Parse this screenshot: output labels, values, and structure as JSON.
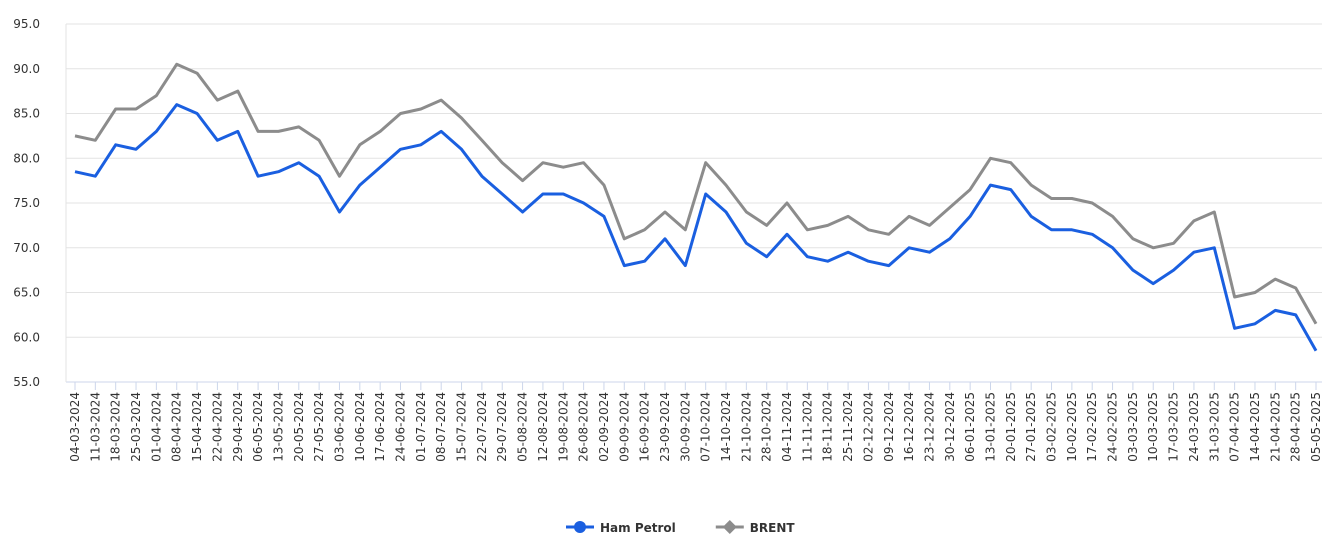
{
  "chart_data": {
    "type": "line",
    "categories": [
      "04-03-2024",
      "11-03-2024",
      "18-03-2024",
      "25-03-2024",
      "01-04-2024",
      "08-04-2024",
      "15-04-2024",
      "22-04-2024",
      "29-04-2024",
      "06-05-2024",
      "13-05-2024",
      "20-05-2024",
      "27-05-2024",
      "03-06-2024",
      "10-06-2024",
      "17-06-2024",
      "24-06-2024",
      "01-07-2024",
      "08-07-2024",
      "15-07-2024",
      "22-07-2024",
      "29-07-2024",
      "05-08-2024",
      "12-08-2024",
      "19-08-2024",
      "26-08-2024",
      "02-09-2024",
      "09-09-2024",
      "16-09-2024",
      "23-09-2024",
      "30-09-2024",
      "07-10-2024",
      "14-10-2024",
      "21-10-2024",
      "28-10-2024",
      "04-11-2024",
      "11-11-2024",
      "18-11-2024",
      "25-11-2024",
      "02-12-2024",
      "09-12-2024",
      "16-12-2024",
      "23-12-2024",
      "30-12-2024",
      "06-01-2025",
      "13-01-2025",
      "20-01-2025",
      "27-01-2025",
      "03-02-2025",
      "10-02-2025",
      "17-02-2025",
      "24-02-2025",
      "03-03-2025",
      "10-03-2025",
      "17-03-2025",
      "24-03-2025",
      "31-03-2025",
      "07-04-2025",
      "14-04-2025",
      "21-04-2025",
      "28-04-2025",
      "05-05-2025"
    ],
    "series": [
      {
        "name": "Ham Petrol",
        "color": "#1a5fe0",
        "values": [
          78.5,
          78,
          81.5,
          81,
          83,
          86,
          85,
          82,
          83,
          78,
          78.5,
          79.5,
          78,
          74,
          77,
          79,
          81,
          81.5,
          83,
          81,
          78,
          76,
          74,
          76,
          76,
          75,
          73.5,
          68,
          68.5,
          71,
          68,
          76,
          74,
          70.5,
          69,
          71.5,
          69,
          68.5,
          69.5,
          68.5,
          68,
          70,
          69.5,
          71,
          73.5,
          77,
          76.5,
          73.5,
          72,
          72,
          71.5,
          70,
          67.5,
          66,
          67.5,
          69.5,
          70,
          61,
          61.5,
          63,
          62.5,
          58.5
        ]
      },
      {
        "name": "BRENT",
        "color": "#8c8c8c",
        "values": [
          82.5,
          82,
          85.5,
          85.5,
          87,
          90.5,
          89.5,
          86.5,
          87.5,
          83,
          83,
          83.5,
          82,
          78,
          81.5,
          83,
          85,
          85.5,
          86.5,
          84.5,
          82,
          79.5,
          77.5,
          79.5,
          79,
          79.5,
          77,
          71,
          72,
          74,
          72,
          79.5,
          77,
          74,
          72.5,
          75,
          72,
          72.5,
          73.5,
          72,
          71.5,
          73.5,
          72.5,
          74.5,
          76.5,
          80,
          79.5,
          77,
          75.5,
          75.5,
          75,
          73.5,
          71,
          70,
          70.5,
          73,
          74,
          64.5,
          65,
          66.5,
          65.5,
          61.5
        ]
      }
    ],
    "ylim": [
      55,
      95
    ],
    "yticks": [
      {
        "value": 55,
        "label": "55.0"
      },
      {
        "value": 60,
        "label": "60.0"
      },
      {
        "value": 65,
        "label": "65.0"
      },
      {
        "value": 70,
        "label": "70.0"
      },
      {
        "value": 75,
        "label": "75.0"
      },
      {
        "value": 80,
        "label": "80.0"
      },
      {
        "value": 85,
        "label": "85.0"
      },
      {
        "value": 90,
        "label": "90.0"
      },
      {
        "value": 95,
        "label": "95.0"
      }
    ],
    "grid": true,
    "legend": "bottom"
  }
}
